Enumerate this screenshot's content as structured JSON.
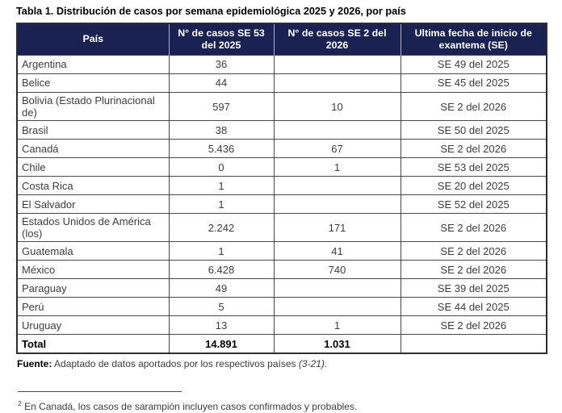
{
  "title": "Tabla 1. Distribución de casos por semana epidemiológica 2025 y 2026, por país",
  "colors": {
    "header_bg": "#1A2254",
    "header_text": "#FFFFFF"
  },
  "table": {
    "headers": [
      "País",
      "N° de casos SE 53 del 2025",
      "N° de casos SE 2 del 2026",
      "Ultima fecha de inicio de exantema (SE)"
    ],
    "rows": [
      {
        "country": "Argentina",
        "cases_se53_2025": "36",
        "cases_se2_2026": "",
        "last_onset": "SE 49 del 2025"
      },
      {
        "country": "Belice",
        "cases_se53_2025": "44",
        "cases_se2_2026": "",
        "last_onset": "SE 45 del 2025"
      },
      {
        "country": "Bolivia (Estado Plurinacional de)",
        "cases_se53_2025": "597",
        "cases_se2_2026": "10",
        "last_onset": "SE 2 del 2026"
      },
      {
        "country": "Brasil",
        "cases_se53_2025": "38",
        "cases_se2_2026": "",
        "last_onset": "SE 50 del 2025"
      },
      {
        "country": "Canadá",
        "cases_se53_2025": "5.436",
        "cases_se2_2026": "67",
        "last_onset": "SE 2 del 2026"
      },
      {
        "country": "Chile",
        "cases_se53_2025": "0",
        "cases_se2_2026": "1",
        "last_onset": "SE 53 del 2025"
      },
      {
        "country": "Costa Rica",
        "cases_se53_2025": "1",
        "cases_se2_2026": "",
        "last_onset": "SE 20 del 2025"
      },
      {
        "country": "El Salvador",
        "cases_se53_2025": "1",
        "cases_se2_2026": "",
        "last_onset": "SE 52 del 2025"
      },
      {
        "country": "Estados Unidos de América (los)",
        "cases_se53_2025": "2.242",
        "cases_se2_2026": "171",
        "last_onset": "SE 2 del 2026"
      },
      {
        "country": "Guatemala",
        "cases_se53_2025": "1",
        "cases_se2_2026": "41",
        "last_onset": "SE 2 del 2026"
      },
      {
        "country": "México",
        "cases_se53_2025": "6.428",
        "cases_se2_2026": "740",
        "last_onset": "SE 2 del 2026"
      },
      {
        "country": "Paraguay",
        "cases_se53_2025": "49",
        "cases_se2_2026": "",
        "last_onset": "SE 39 del 2025"
      },
      {
        "country": "Perú",
        "cases_se53_2025": "5",
        "cases_se2_2026": "",
        "last_onset": "SE 44 del 2025"
      },
      {
        "country": "Uruguay",
        "cases_se53_2025": "13",
        "cases_se2_2026": "1",
        "last_onset": "SE 2 del 2026"
      }
    ],
    "total": {
      "label": "Total",
      "cases_se53_2025": "14.891",
      "cases_se2_2026": "1.031",
      "last_onset": ""
    }
  },
  "source": {
    "label": "Fuente:",
    "text": " Adaptado de datos aportados por los respectivos países ",
    "citation": "(3-21)",
    "suffix": "."
  },
  "footnote": {
    "marker": "2",
    "text": "En Canadá, los casos de sarampión incluyen casos confirmados y probables."
  }
}
